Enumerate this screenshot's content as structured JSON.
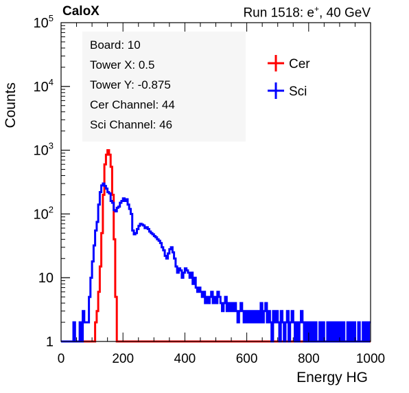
{
  "header": {
    "experiment": "CaloX",
    "run_prefix": "Run 1518: e",
    "run_sup": "+",
    "run_suffix": ", 40 GeV"
  },
  "info_box": {
    "lines": [
      "Board: 10",
      "Tower X: 0.5",
      "Tower Y: -0.875",
      "Cer Channel: 44",
      "Sci Channel: 46"
    ]
  },
  "chart_data": {
    "type": "line",
    "xlabel": "Energy HG",
    "ylabel": "Counts",
    "xlim": [
      0,
      1000
    ],
    "ylim": [
      1,
      100000
    ],
    "y_scale": "log",
    "x_ticks": [
      0,
      200,
      400,
      600,
      800,
      1000
    ],
    "y_tick_labels": [
      {
        "v": 1,
        "base": "1",
        "exp": ""
      },
      {
        "v": 10,
        "base": "10",
        "exp": ""
      },
      {
        "v": 100,
        "base": "10",
        "exp": "2"
      },
      {
        "v": 1000,
        "base": "10",
        "exp": "3"
      },
      {
        "v": 10000,
        "base": "10",
        "exp": "4"
      },
      {
        "v": 100000,
        "base": "10",
        "exp": "5"
      }
    ],
    "legend_position": "top-right",
    "grid": false,
    "series": [
      {
        "name": "Cer",
        "color": "#ff0000",
        "points": [
          [
            0,
            1
          ],
          [
            110,
            1
          ],
          [
            110,
            2
          ],
          [
            115,
            3
          ],
          [
            120,
            6
          ],
          [
            125,
            15
          ],
          [
            130,
            50
          ],
          [
            135,
            200
          ],
          [
            140,
            600
          ],
          [
            145,
            850
          ],
          [
            150,
            1000
          ],
          [
            155,
            850
          ],
          [
            160,
            550
          ],
          [
            165,
            200
          ],
          [
            170,
            40
          ],
          [
            175,
            5
          ],
          [
            180,
            1
          ],
          [
            1000,
            1
          ]
        ]
      },
      {
        "name": "Sci",
        "color": "#0000ff",
        "points": [
          [
            0,
            1
          ],
          [
            40,
            1
          ],
          [
            40,
            2
          ],
          [
            45,
            1
          ],
          [
            60,
            1
          ],
          [
            60,
            2
          ],
          [
            65,
            1
          ],
          [
            70,
            1
          ],
          [
            70,
            3
          ],
          [
            75,
            2
          ],
          [
            90,
            2
          ],
          [
            90,
            5
          ],
          [
            95,
            10
          ],
          [
            100,
            18
          ],
          [
            105,
            32
          ],
          [
            110,
            55
          ],
          [
            115,
            75
          ],
          [
            120,
            140
          ],
          [
            125,
            220
          ],
          [
            130,
            280
          ],
          [
            135,
            300
          ],
          [
            140,
            275
          ],
          [
            145,
            250
          ],
          [
            150,
            220
          ],
          [
            155,
            210
          ],
          [
            160,
            160
          ],
          [
            165,
            150
          ],
          [
            170,
            115
          ],
          [
            175,
            110
          ],
          [
            180,
            125
          ],
          [
            185,
            130
          ],
          [
            190,
            150
          ],
          [
            195,
            160
          ],
          [
            200,
            175
          ],
          [
            205,
            160
          ],
          [
            210,
            170
          ],
          [
            215,
            140
          ],
          [
            220,
            120
          ],
          [
            225,
            100
          ],
          [
            230,
            55
          ],
          [
            235,
            48
          ],
          [
            240,
            50
          ],
          [
            245,
            58
          ],
          [
            250,
            65
          ],
          [
            255,
            70
          ],
          [
            260,
            68
          ],
          [
            265,
            66
          ],
          [
            270,
            60
          ],
          [
            275,
            62
          ],
          [
            280,
            58
          ],
          [
            285,
            53
          ],
          [
            290,
            50
          ],
          [
            295,
            48
          ],
          [
            300,
            45
          ],
          [
            305,
            43
          ],
          [
            310,
            40
          ],
          [
            315,
            38
          ],
          [
            320,
            35
          ],
          [
            325,
            30
          ],
          [
            330,
            27
          ],
          [
            335,
            22
          ],
          [
            340,
            20
          ],
          [
            345,
            24
          ],
          [
            350,
            28
          ],
          [
            355,
            30
          ],
          [
            360,
            25
          ],
          [
            365,
            20
          ],
          [
            370,
            15
          ],
          [
            375,
            12
          ],
          [
            380,
            14
          ],
          [
            385,
            13
          ],
          [
            390,
            10
          ],
          [
            395,
            12
          ],
          [
            400,
            14
          ],
          [
            405,
            13
          ],
          [
            410,
            12
          ],
          [
            415,
            10
          ],
          [
            420,
            12
          ],
          [
            425,
            8
          ],
          [
            430,
            10
          ],
          [
            435,
            7
          ],
          [
            440,
            6
          ],
          [
            445,
            7
          ],
          [
            450,
            6
          ],
          [
            455,
            5
          ],
          [
            460,
            6
          ],
          [
            465,
            4
          ],
          [
            470,
            5
          ],
          [
            475,
            4
          ],
          [
            480,
            5
          ],
          [
            485,
            6
          ],
          [
            490,
            4
          ],
          [
            495,
            5
          ],
          [
            500,
            4
          ],
          [
            505,
            6
          ],
          [
            510,
            5
          ],
          [
            515,
            4
          ],
          [
            520,
            3
          ],
          [
            525,
            4
          ],
          [
            530,
            5
          ],
          [
            535,
            3
          ],
          [
            540,
            4
          ],
          [
            545,
            3
          ],
          [
            550,
            4
          ],
          [
            555,
            3
          ],
          [
            560,
            4
          ],
          [
            565,
            3
          ],
          [
            570,
            2
          ],
          [
            575,
            3
          ],
          [
            580,
            4
          ],
          [
            585,
            3
          ],
          [
            590,
            2
          ],
          [
            595,
            3
          ],
          [
            600,
            2
          ],
          [
            605,
            3
          ],
          [
            610,
            2
          ],
          [
            615,
            3
          ],
          [
            620,
            2
          ],
          [
            625,
            3
          ],
          [
            630,
            2
          ],
          [
            635,
            3
          ],
          [
            640,
            2
          ],
          [
            645,
            4
          ],
          [
            650,
            2
          ],
          [
            655,
            3
          ],
          [
            660,
            4
          ],
          [
            665,
            2
          ],
          [
            670,
            3
          ],
          [
            675,
            2
          ],
          [
            680,
            1
          ],
          [
            685,
            3
          ],
          [
            690,
            2
          ],
          [
            695,
            3
          ],
          [
            700,
            2
          ],
          [
            705,
            1
          ],
          [
            710,
            3
          ],
          [
            715,
            2
          ],
          [
            720,
            1
          ],
          [
            725,
            2
          ],
          [
            730,
            3
          ],
          [
            735,
            1
          ],
          [
            740,
            2
          ],
          [
            745,
            3
          ],
          [
            750,
            2
          ],
          [
            755,
            1
          ],
          [
            760,
            2
          ],
          [
            765,
            1
          ],
          [
            770,
            2
          ],
          [
            775,
            3
          ],
          [
            780,
            2
          ],
          [
            785,
            1
          ],
          [
            790,
            2
          ],
          [
            795,
            1
          ],
          [
            800,
            2
          ],
          [
            805,
            1
          ],
          [
            810,
            2
          ],
          [
            815,
            1
          ],
          [
            820,
            2
          ],
          [
            825,
            1
          ],
          [
            830,
            1
          ],
          [
            835,
            2
          ],
          [
            840,
            1
          ],
          [
            845,
            2
          ],
          [
            850,
            1
          ],
          [
            855,
            1
          ],
          [
            860,
            2
          ],
          [
            865,
            1
          ],
          [
            870,
            2
          ],
          [
            875,
            1
          ],
          [
            880,
            2
          ],
          [
            885,
            1
          ],
          [
            890,
            2
          ],
          [
            895,
            1
          ],
          [
            900,
            2
          ],
          [
            905,
            1
          ],
          [
            910,
            2
          ],
          [
            915,
            1
          ],
          [
            920,
            1
          ],
          [
            925,
            2
          ],
          [
            930,
            1
          ],
          [
            935,
            2
          ],
          [
            940,
            1
          ],
          [
            945,
            2
          ],
          [
            950,
            1
          ],
          [
            955,
            1
          ],
          [
            960,
            2
          ],
          [
            965,
            1
          ],
          [
            970,
            1
          ],
          [
            975,
            2
          ],
          [
            980,
            1
          ],
          [
            985,
            2
          ],
          [
            990,
            1
          ],
          [
            995,
            2
          ]
        ]
      }
    ]
  }
}
